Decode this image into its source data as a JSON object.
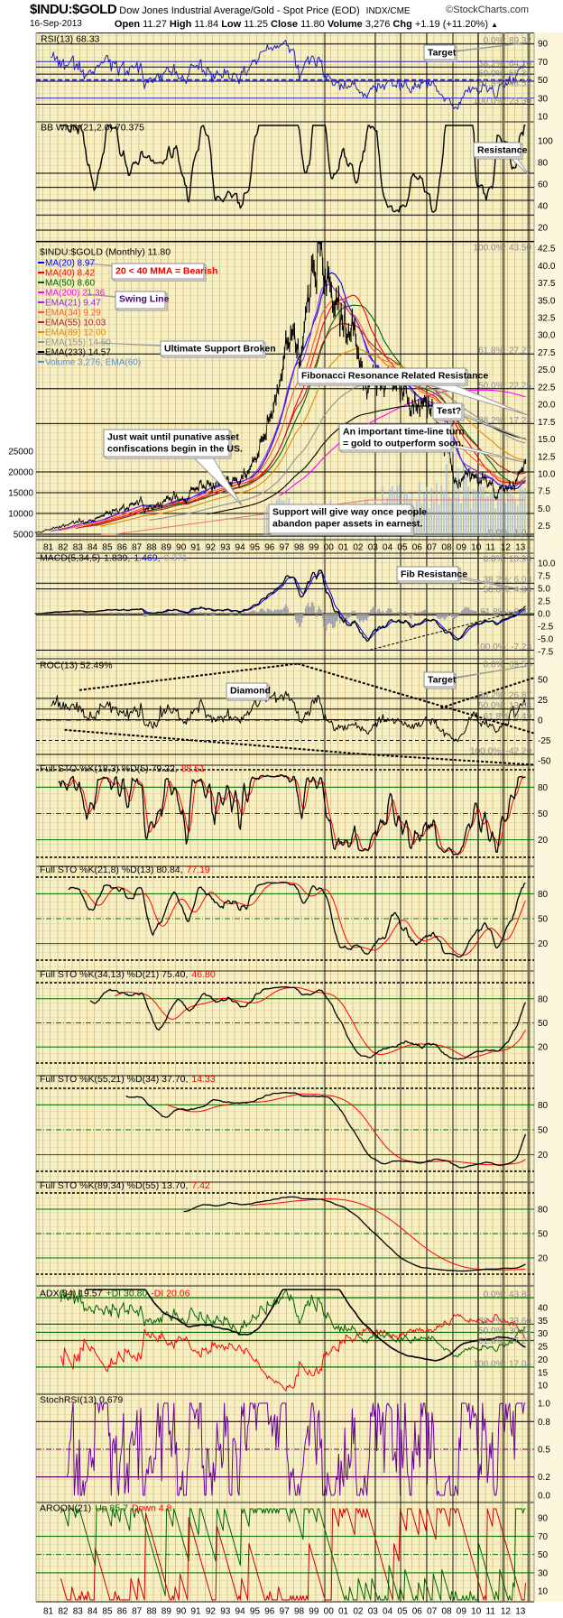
{
  "header": {
    "symbol": "$INDU:$GOLD",
    "description": "Dow Jones Industrial Average/Gold - Spot Price (EOD)",
    "exchange": "INDX/CME",
    "copyright": "©StockCharts.com",
    "date": "16-Sep-2013",
    "quote": {
      "open_label": "Open",
      "open": "11.27",
      "high_label": "High",
      "high": "11.84",
      "low_label": "Low",
      "low": "11.25",
      "close_label": "Close",
      "close": "11.80",
      "volume_label": "Volume",
      "volume": "3,276",
      "chg_label": "Chg",
      "chg": "+1.19 (+11.20%)",
      "chg_arrow": "▲"
    }
  },
  "panels": {
    "rsi": {
      "label": "RSI(13) 68.33",
      "ticks": [
        "90",
        "70",
        "50",
        "30",
        "10"
      ],
      "fib": [
        {
          "label": "0.0%: 89.32",
          "value": 89.32
        },
        {
          "label": "38.2%: 64.10",
          "value": 64.1
        },
        {
          "label": "50.0%: 56.31",
          "value": 56.31
        },
        {
          "label": "61.8%: 48.52",
          "value": 48.52
        },
        {
          "label": "100.0%: 23.30",
          "value": 23.3
        }
      ]
    },
    "bb": {
      "label": "BB Width(21,2.0) 70.375",
      "ticks": [
        "100",
        "80",
        "60",
        "40",
        "20"
      ],
      "lines": [
        70,
        57,
        45,
        31.5,
        17.5
      ]
    },
    "main": {
      "label": "$INDU:$GOLD (Monthly) 11.80",
      "ticks": [
        "42.5",
        "40.0",
        "37.5",
        "35.0",
        "32.5",
        "30.0",
        "27.5",
        "25.0",
        "22.5",
        "20.0",
        "17.5",
        "15.0",
        "12.5",
        "10.0",
        "7.5",
        "5.0",
        "2.5"
      ],
      "left_ticks": [
        "25000",
        "20000",
        "15000",
        "10000",
        "5000"
      ],
      "fib": [
        {
          "label": "100.0%: 43.50",
          "value": 43.5
        },
        {
          "label": "61.8%: 27.27",
          "value": 27.27
        },
        {
          "label": "50.0%: 22.25",
          "value": 22.25
        },
        {
          "label": "38.2%: 17.24",
          "value": 17.24
        },
        {
          "label": "0.0%: 1.01",
          "value": 1.01
        }
      ],
      "legend": [
        {
          "label": "MA(20) 8.97",
          "color": "#0000ff",
          "kind": "sma",
          "period": 20
        },
        {
          "label": "MA(40) 8.42",
          "color": "#ff0000",
          "kind": "sma",
          "period": 40
        },
        {
          "label": "MA(50) 8.60",
          "color": "#006400",
          "kind": "sma",
          "period": 50
        },
        {
          "label": "MA(200) 21.36",
          "color": "#ff00ff",
          "kind": "sma",
          "period": 200
        },
        {
          "label": "EMA(21) 9.47",
          "color": "#8a2be2",
          "kind": "ema",
          "period": 21
        },
        {
          "label": "EMA(34) 9.29",
          "color": "#ff5a1e",
          "kind": "ema",
          "period": 34
        },
        {
          "label": "EMA(55) 10.03",
          "color": "#b22222",
          "kind": "ema",
          "period": 55
        },
        {
          "label": "EMA(89) 12.00",
          "color": "#e08a00",
          "kind": "ema",
          "period": 89
        },
        {
          "label": "EMA(155) 14.50",
          "color": "#909090",
          "kind": "ema",
          "period": 155
        },
        {
          "label": "EMA(233) 14.57",
          "color": "#000000",
          "kind": "ema",
          "period": 233
        },
        {
          "label": "Volume 3,276, EMA(60)",
          "color": "#5b8fc8",
          "kind": "volume",
          "period": 60
        }
      ]
    },
    "macd": {
      "parts": [
        {
          "text": "MACD(5,34,5)",
          "color": "#000000"
        },
        {
          "text": "1.839,",
          "color": "#000000"
        },
        {
          "text": "1.469,",
          "color": "#0000ff"
        },
        {
          "text": "0.371",
          "color": "#9a9aa8"
        }
      ],
      "ticks": [
        "10.0",
        "7.5",
        "5.0",
        "2.5",
        "0.0",
        "-2.5",
        "-5.0",
        "-7.5"
      ],
      "fib": [
        {
          "label": "0.0%: 10.98",
          "value": 10.98
        },
        {
          "label": "38.2%: 6.03",
          "value": 6.03
        },
        {
          "label": "50.0%: 4.88",
          "value": 4.88
        },
        {
          "label": "61.8%: -0.27",
          "value": -0.27
        },
        {
          "label": "100.0%: -7.23",
          "value": -7.23
        }
      ]
    },
    "roc": {
      "label": "ROC(13) 52.49%",
      "ticks": [
        "50",
        "25",
        "0",
        "-25",
        "-50"
      ],
      "fib": [
        {
          "label": "0.0%: 69.57",
          "value": 69.57
        },
        {
          "label": "38.2%: 26.87",
          "value": 26.87
        },
        {
          "label": "50.0%: 13.68",
          "value": 13.68
        },
        {
          "label": "61.8%: 0.49",
          "value": 0.49
        },
        {
          "label": "100.0%: -42.20",
          "value": -42.2
        }
      ]
    },
    "sto": [
      {
        "label": "Full STO %K(18,3) %D(5) 79.22,",
        "red": "88.51",
        "k": 18,
        "s": 3,
        "d": 5
      },
      {
        "label": "Full STO %K(21,8) %D(13) 80.84,",
        "red": "77.19",
        "k": 21,
        "s": 8,
        "d": 13
      },
      {
        "label": "Full STO %K(34,13) %D(21) 75.40,",
        "red": "46.80",
        "k": 34,
        "s": 13,
        "d": 21
      },
      {
        "label": "Full STO %K(55,21) %D(34) 37.70,",
        "red": "14.33",
        "k": 55,
        "s": 21,
        "d": 34
      },
      {
        "label": "Full STO %K(89,34) %D(55) 13.70,",
        "red": "7.42",
        "k": 89,
        "s": 34,
        "d": 55
      }
    ],
    "sto_ticks": [
      "80",
      "50",
      "20"
    ],
    "adx": {
      "parts": [
        {
          "text": "ADX(34) 19.57",
          "color": "#000000"
        },
        {
          "text": "+DI 30.80",
          "color": "#006400"
        },
        {
          "text": "-DI 20.06",
          "color": "#ff0000"
        }
      ],
      "ticks": [
        "40",
        "35",
        "30",
        "25",
        "20",
        "15",
        "10"
      ],
      "fib": [
        {
          "label": "0.0%: 43.84",
          "value": 43.84
        },
        {
          "label": "38.2%: 33.60",
          "value": 33.6
        },
        {
          "label": "50.0%: 30.44",
          "value": 30.44
        },
        {
          "label": "61.8%: 27.27",
          "value": 27.27
        },
        {
          "label": "100.0%: 17.04",
          "value": 17.04
        }
      ]
    },
    "stochrsi": {
      "label": "StochRSI(13) 0.679",
      "ticks": [
        "1.0",
        "0.8",
        "0.5",
        "0.2",
        "0.0"
      ]
    },
    "aroon": {
      "parts": [
        {
          "text": "AROON(21)",
          "color": "#000000"
        },
        {
          "text": "Up 85.7",
          "color": "#006400"
        },
        {
          "text": "Down 4.8",
          "color": "#ff0000"
        }
      ],
      "ticks": [
        "90",
        "70",
        "50",
        "30",
        "10"
      ]
    }
  },
  "x_axis": {
    "labels": [
      "81",
      "82",
      "83",
      "84",
      "85",
      "86",
      "87",
      "88",
      "89",
      "90",
      "91",
      "92",
      "93",
      "94",
      "95",
      "96",
      "97",
      "98",
      "99",
      "00",
      "01",
      "02",
      "03",
      "04",
      "05",
      "06",
      "07",
      "08",
      "09",
      "10",
      "11",
      "12",
      "13"
    ]
  },
  "annotations": {
    "rsi_target": "Target",
    "bb_resistance": "Resistance",
    "bearish": "20 < 40 MMA = Bearish",
    "swing_line": "Swing Line",
    "ultimate_support": "Ultimate Support Broken",
    "fib_resonance": "Fibonacci Resonance Related  Resistance",
    "test": "Test?",
    "just_wait_1": "Just wait until punative asset",
    "just_wait_2": "confiscations begin in the US.",
    "time_line_1": "An important time-line turn",
    "time_line_2": "= gold to outperform soon.",
    "support_1": "Support will give way once people",
    "support_2": "abandon paper assets in earnest.",
    "fib_resistance": "Fib Resistance",
    "diamond": "Diamond",
    "roc_target": "Target"
  },
  "colors": {
    "background": "#f7f0c4",
    "price": "#000000",
    "rsi": "#2020c0",
    "stoch_k": "#000000",
    "stoch_d": "#ff0000",
    "grid_green": "#007000",
    "stochrsi": "#660099"
  },
  "chart_data": {
    "type": "line",
    "frequency": "monthly",
    "xlim": [
      1980.5,
      2013.71
    ],
    "ylim": [
      1.01,
      43.5
    ],
    "last_close": 11.8,
    "price_anchors": [
      [
        1980.5,
        1.5
      ],
      [
        1981.0,
        1.6
      ],
      [
        1981.5,
        2.0
      ],
      [
        1982.0,
        2.3
      ],
      [
        1982.5,
        2.5
      ],
      [
        1983.0,
        3.0
      ],
      [
        1983.5,
        3.2
      ],
      [
        1984.0,
        3.0
      ],
      [
        1984.5,
        3.4
      ],
      [
        1985.0,
        4.0
      ],
      [
        1985.5,
        4.4
      ],
      [
        1986.0,
        4.6
      ],
      [
        1986.5,
        5.0
      ],
      [
        1987.0,
        5.3
      ],
      [
        1987.7,
        6.2
      ],
      [
        1987.9,
        4.8
      ],
      [
        1988.5,
        5.2
      ],
      [
        1989.0,
        5.6
      ],
      [
        1989.5,
        6.5
      ],
      [
        1990.0,
        6.8
      ],
      [
        1990.7,
        6.0
      ],
      [
        1991.0,
        7.3
      ],
      [
        1992.0,
        8.6
      ],
      [
        1992.5,
        8.2
      ],
      [
        1993.0,
        8.8
      ],
      [
        1993.5,
        9.2
      ],
      [
        1994.0,
        9.0
      ],
      [
        1994.5,
        9.3
      ],
      [
        1995.0,
        10.5
      ],
      [
        1995.5,
        12.5
      ],
      [
        1996.0,
        15.5
      ],
      [
        1996.5,
        18.0
      ],
      [
        1997.0,
        22.0
      ],
      [
        1997.5,
        28.0
      ],
      [
        1998.0,
        30.0
      ],
      [
        1998.6,
        27.0
      ],
      [
        1999.0,
        36.0
      ],
      [
        1999.5,
        40.0
      ],
      [
        1999.8,
        43.0
      ],
      [
        2000.3,
        38.0
      ],
      [
        2000.7,
        35.0
      ],
      [
        2001.0,
        34.0
      ],
      [
        2001.7,
        30.0
      ],
      [
        2002.0,
        33.0
      ],
      [
        2002.7,
        24.0
      ],
      [
        2003.0,
        22.0
      ],
      [
        2003.5,
        24.0
      ],
      [
        2004.0,
        23.0
      ],
      [
        2004.5,
        24.0
      ],
      [
        2005.0,
        23.0
      ],
      [
        2005.5,
        22.0
      ],
      [
        2006.0,
        20.0
      ],
      [
        2006.5,
        20.0
      ],
      [
        2007.0,
        19.5
      ],
      [
        2007.5,
        20.0
      ],
      [
        2008.0,
        15.0
      ],
      [
        2008.5,
        13.0
      ],
      [
        2008.9,
        10.0
      ],
      [
        2009.2,
        8.0
      ],
      [
        2009.6,
        10.0
      ],
      [
        2010.0,
        10.0
      ],
      [
        2010.5,
        9.0
      ],
      [
        2011.0,
        9.0
      ],
      [
        2011.5,
        8.0
      ],
      [
        2011.7,
        6.5
      ],
      [
        2012.0,
        7.8
      ],
      [
        2012.5,
        8.1
      ],
      [
        2013.0,
        8.5
      ],
      [
        2013.3,
        10.0
      ],
      [
        2013.5,
        10.6
      ],
      [
        2013.71,
        11.8
      ]
    ]
  }
}
